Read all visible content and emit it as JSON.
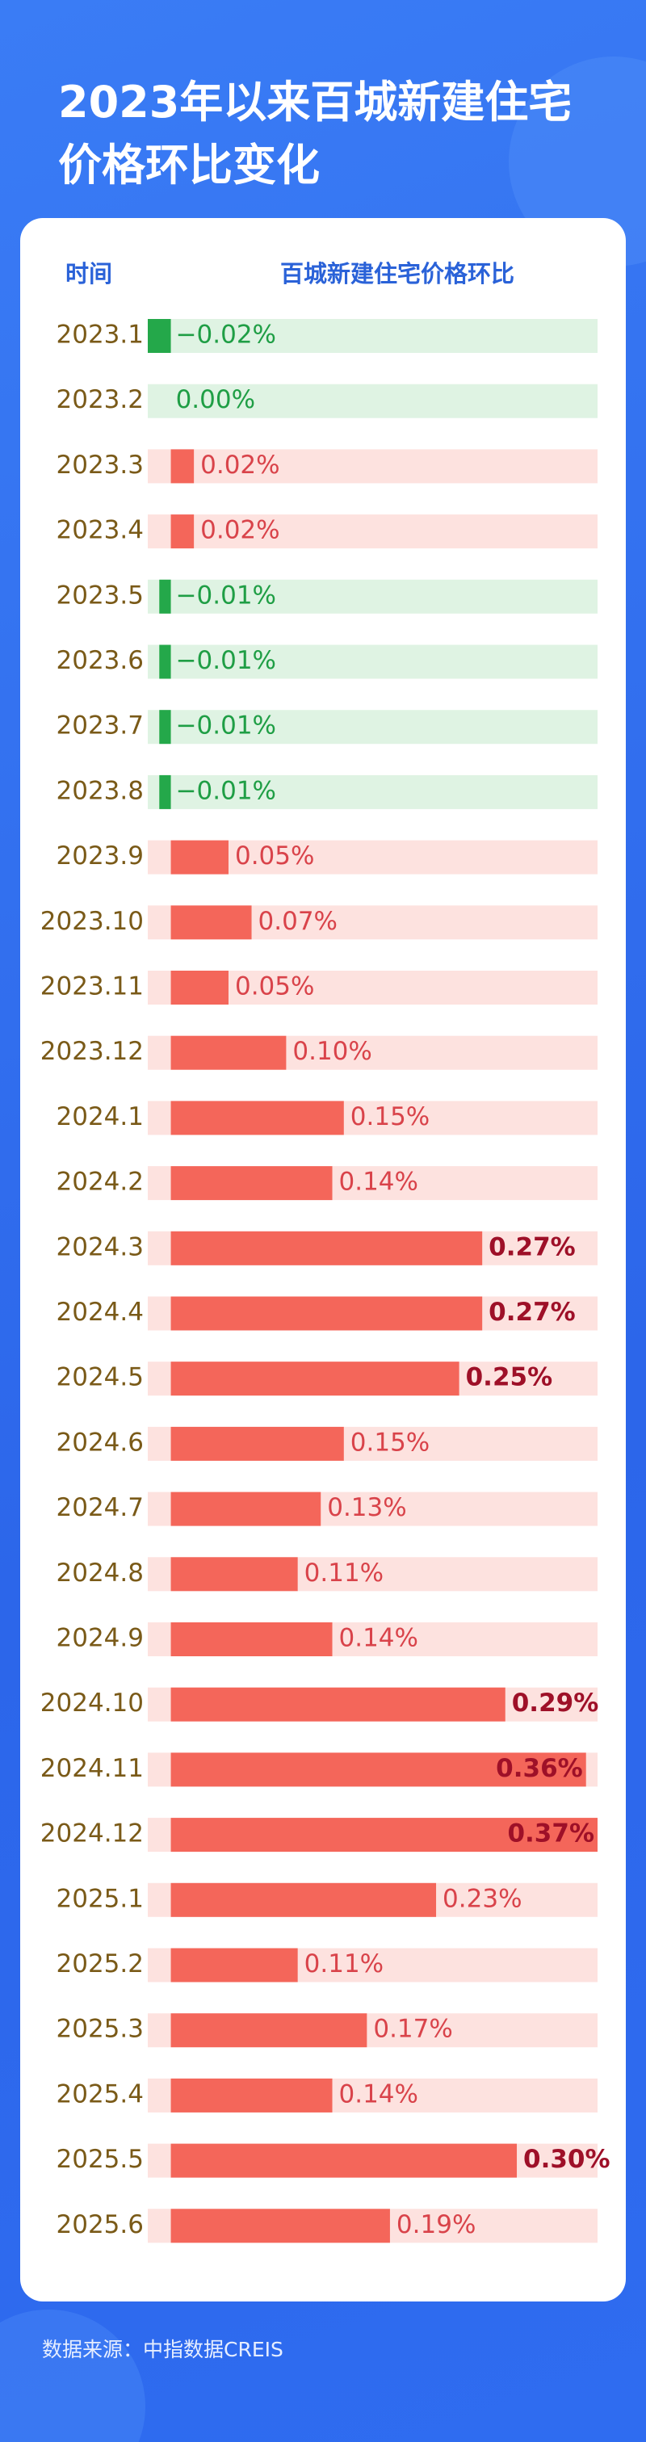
{
  "chart_data": {
    "type": "hbar",
    "title": "2023年以来百城新建住宅价格环比变化",
    "category_label": "时间",
    "value_label": "百城新建住宅价格环比",
    "source": "数据来源：中指数据CREIS",
    "categories": [
      "2023.1",
      "2023.2",
      "2023.3",
      "2023.4",
      "2023.5",
      "2023.6",
      "2023.7",
      "2023.8",
      "2023.9",
      "2023.10",
      "2023.11",
      "2023.12",
      "2024.1",
      "2024.2",
      "2024.3",
      "2024.4",
      "2024.5",
      "2024.6",
      "2024.7",
      "2024.8",
      "2024.9",
      "2024.10",
      "2024.11",
      "2024.12",
      "2025.1",
      "2025.2",
      "2025.3",
      "2025.4",
      "2025.5",
      "2025.6"
    ],
    "values": [
      -0.02,
      0,
      0.02,
      0.02,
      -0.01,
      -0.01,
      -0.01,
      -0.01,
      0.05,
      0.07,
      0.05,
      0.1,
      0.15,
      0.14,
      0.27,
      0.27,
      0.25,
      0.15,
      0.13,
      0.11,
      0.14,
      0.29,
      0.36,
      0.37,
      0.23,
      0.11,
      0.17,
      0.14,
      0.3,
      0.19
    ],
    "value_labels": [
      "−0.02%",
      "0.00%",
      "0.02%",
      "0.02%",
      "−0.01%",
      "−0.01%",
      "−0.01%",
      "−0.01%",
      "0.05%",
      "0.07%",
      "0.05%",
      "0.10%",
      "0.15%",
      "0.14%",
      "0.27%",
      "0.27%",
      "0.25%",
      "0.15%",
      "0.13%",
      "0.11%",
      "0.14%",
      "0.29%",
      "0.36%",
      "0.37%",
      "0.23%",
      "0.11%",
      "0.17%",
      "0.14%",
      "0.30%",
      "0.19%"
    ],
    "xlim": [
      -0.02,
      0.37
    ],
    "color": "#f4665a",
    "negative_color": "#24a84a"
  }
}
